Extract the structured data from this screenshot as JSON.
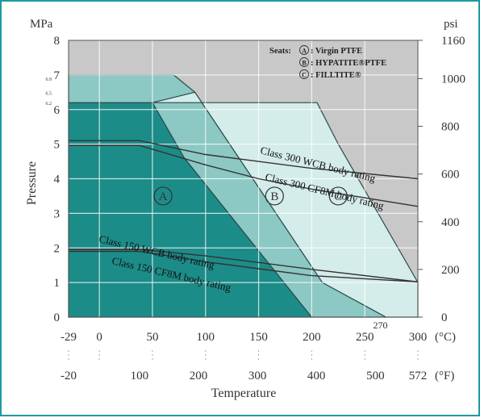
{
  "chart_data": {
    "type": "area",
    "left_unit": "MPa",
    "right_unit": "psi",
    "xlabel": "Temperature",
    "ylabel": "Pressure",
    "xlim": [
      -29,
      300
    ],
    "ylim": [
      0,
      8
    ],
    "x_ticks_c": [
      "-29",
      "0",
      "50",
      "100",
      "150",
      "200",
      "250",
      "300"
    ],
    "x_ticks_c_values": [
      -29,
      0,
      50,
      100,
      150,
      200,
      250,
      300
    ],
    "x_tick_270": "270",
    "x_unit_c": "(°C)",
    "x_ticks_f": [
      "-20",
      "100",
      "200",
      "300",
      "400",
      "500",
      "572"
    ],
    "x_ticks_f_values_c": [
      -29,
      37.8,
      93.3,
      148.9,
      204.4,
      260,
      300
    ],
    "x_unit_f": "(°F)",
    "y_ticks_mpa": [
      "0",
      "1",
      "2",
      "3",
      "4",
      "5",
      "6",
      "7",
      "8"
    ],
    "y_ticks_psi": [
      "0",
      "200",
      "400",
      "600",
      "800",
      "1000",
      "1160"
    ],
    "y_ticks_psi_values_mpa": [
      0,
      1.379,
      2.758,
      4.137,
      5.516,
      6.895,
      8.0
    ],
    "legend_title": "Seats:",
    "legend": [
      {
        "letter": "A",
        "text": "Virgin PTFE"
      },
      {
        "letter": "B",
        "text": "HYPATITE®PTFE"
      },
      {
        "letter": "C",
        "text": "FILLTITE®"
      }
    ],
    "seat_regions": [
      {
        "name": "A",
        "color": "#1c8c88",
        "label_at": [
          60,
          3.5
        ],
        "points": [
          [
            -29,
            6.2
          ],
          [
            50,
            6.2
          ],
          [
            80,
            4.6
          ],
          [
            200,
            0
          ],
          [
            -29,
            0
          ]
        ]
      },
      {
        "name": "B",
        "color": "#8cc8c4",
        "label_at": [
          165,
          3.5
        ],
        "points": [
          [
            -29,
            7.0
          ],
          [
            70,
            7.0
          ],
          [
            90,
            6.5
          ],
          [
            210,
            1.0
          ],
          [
            270,
            0
          ],
          [
            200,
            0
          ],
          [
            80,
            4.6
          ],
          [
            50,
            6.2
          ],
          [
            -29,
            6.2
          ]
        ]
      },
      {
        "name": "C",
        "color": "#d4ecea",
        "label_at": [
          225,
          3.5
        ],
        "points": [
          [
            50,
            6.2
          ],
          [
            205,
            6.2
          ],
          [
            225,
            5.0
          ],
          [
            300,
            1.0
          ],
          [
            300,
            0
          ],
          [
            270,
            0
          ],
          [
            210,
            1.0
          ],
          [
            90,
            6.5
          ]
        ]
      }
    ],
    "rating_lines": [
      {
        "name": "Class 300 WCB body rating",
        "points": [
          [
            -29,
            5.1
          ],
          [
            38,
            5.1
          ],
          [
            100,
            4.7
          ],
          [
            150,
            4.5
          ],
          [
            200,
            4.3
          ],
          [
            300,
            4.0
          ]
        ]
      },
      {
        "name": "Class 300 CF8M body rating",
        "points": [
          [
            -29,
            4.96
          ],
          [
            38,
            4.96
          ],
          [
            100,
            4.4
          ],
          [
            150,
            4.0
          ],
          [
            200,
            3.7
          ],
          [
            300,
            3.2
          ]
        ]
      },
      {
        "name": "Class 150 WCB body rating",
        "points": [
          [
            -29,
            1.96
          ],
          [
            38,
            1.96
          ],
          [
            100,
            1.77
          ],
          [
            150,
            1.58
          ],
          [
            200,
            1.38
          ],
          [
            300,
            1.02
          ]
        ]
      },
      {
        "name": "Class 150 CF8M body rating",
        "points": [
          [
            -29,
            1.9
          ],
          [
            38,
            1.9
          ],
          [
            100,
            1.6
          ],
          [
            150,
            1.4
          ],
          [
            200,
            1.2
          ],
          [
            300,
            1.02
          ]
        ]
      }
    ],
    "small_ticks_left": [
      "6.9",
      "6.5",
      "6.2"
    ],
    "small_ticks_left_values": [
      6.9,
      6.5,
      6.2
    ],
    "grid": true
  }
}
